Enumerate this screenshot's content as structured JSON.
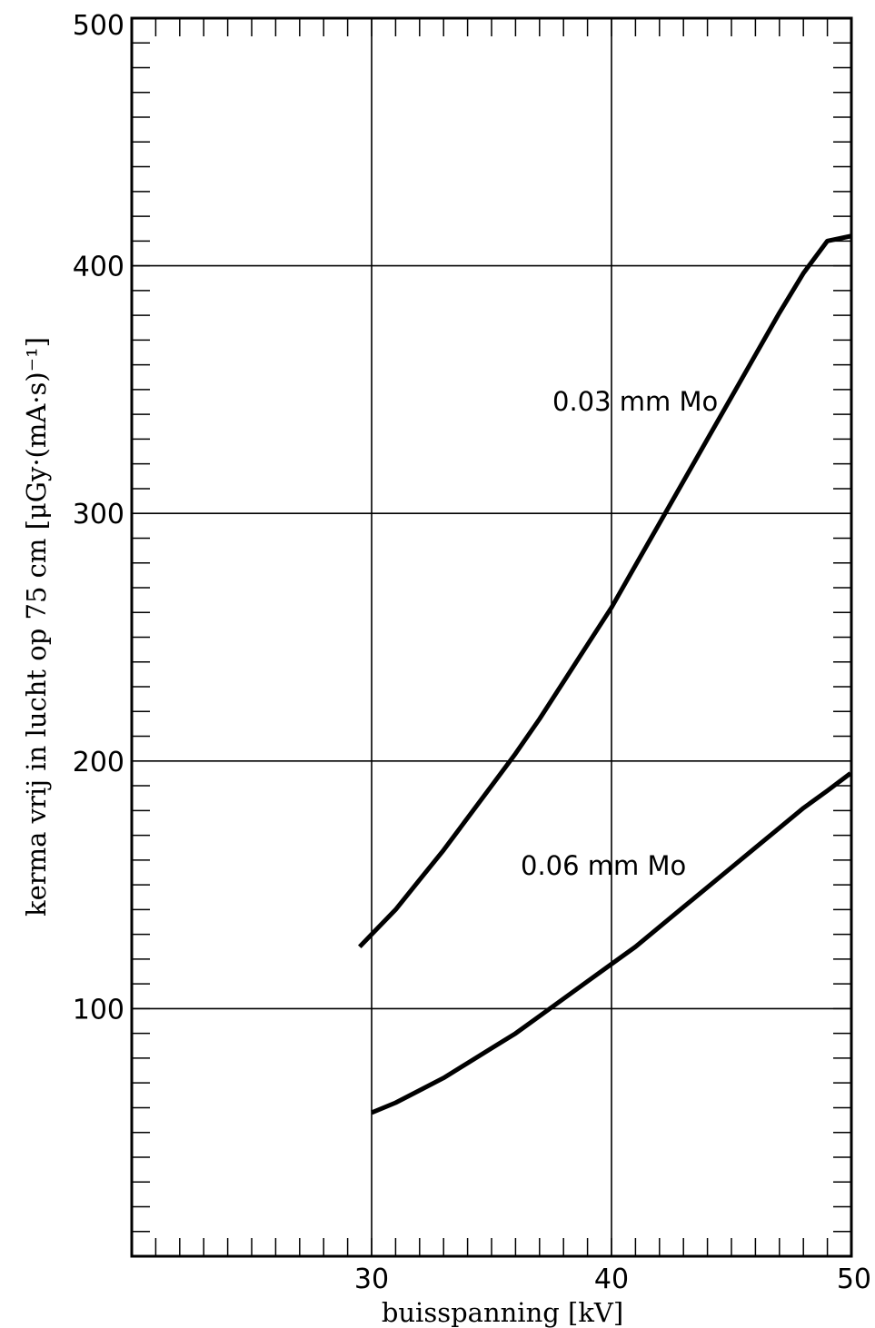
{
  "chart_data": {
    "type": "line",
    "title": "",
    "xlabel": "buisspanning  [kV]",
    "ylabel": "kerma vrij in lucht op 75 cm  [μGy·(mA·s)⁻¹]",
    "xlim": [
      20,
      50
    ],
    "ylim": [
      0,
      500
    ],
    "x_ticks": [
      30,
      40,
      50
    ],
    "y_ticks": [
      100,
      200,
      300,
      400,
      500
    ],
    "x_minor_step": 1,
    "y_minor_step": 10,
    "grid": true,
    "legend": "none",
    "series": [
      {
        "name": "0.03 mm Mo",
        "x": [
          29.5,
          30,
          31,
          32,
          33,
          34,
          35,
          36,
          37,
          38,
          39,
          40,
          41,
          42,
          43,
          44,
          45,
          46,
          47,
          48,
          49,
          50
        ],
        "y": [
          125,
          130,
          140,
          152,
          164,
          177,
          190,
          203,
          217,
          232,
          247,
          262,
          279,
          296,
          313,
          330,
          347,
          364,
          381,
          397,
          410,
          420
        ]
      },
      {
        "name": "0.06 mm Mo",
        "x": [
          30,
          31,
          32,
          33,
          34,
          35,
          36,
          37,
          38,
          39,
          40,
          41,
          42,
          43,
          44,
          45,
          46,
          47,
          48,
          49,
          50
        ],
        "y": [
          58,
          62,
          67,
          72,
          78,
          84,
          90,
          97,
          104,
          111,
          118,
          125,
          133,
          141,
          149,
          157,
          165,
          173,
          181,
          188,
          195
        ]
      }
    ],
    "annotations": [
      {
        "text": "0.03 mm Mo",
        "series": 0
      },
      {
        "text": "0.06 mm Mo",
        "series": 1
      }
    ]
  }
}
